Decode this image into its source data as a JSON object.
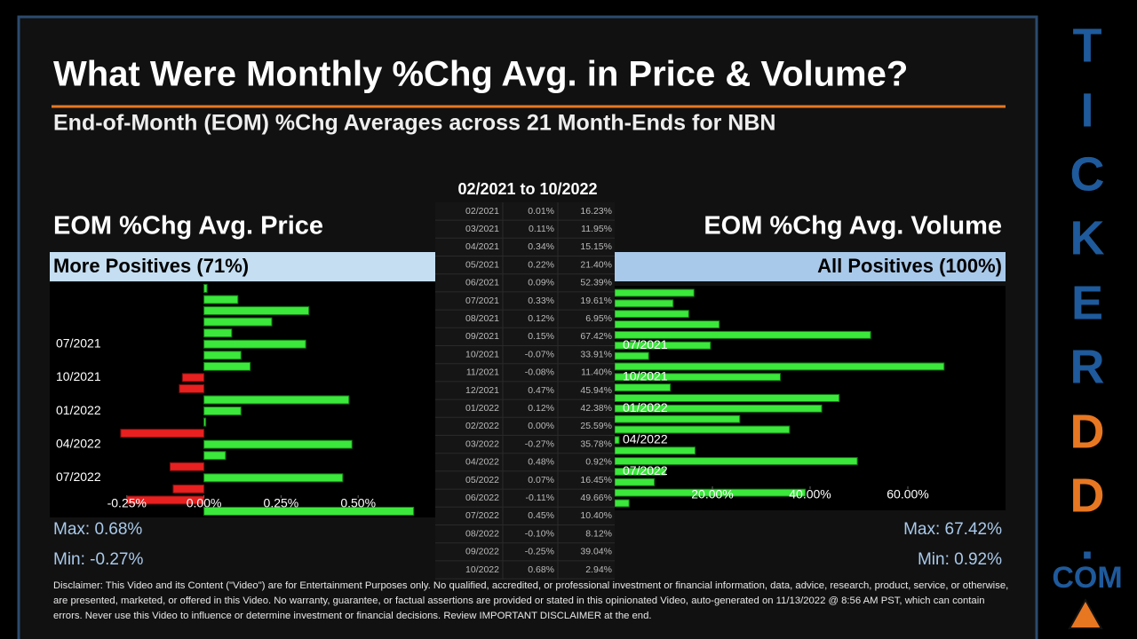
{
  "header": {
    "title": "What Were Monthly %Chg Avg. in Price & Volume?",
    "subtitle": "End-of-Month (EOM) %Chg Averages across 21 Month-Ends for NBN"
  },
  "table": {
    "title": "02/2021 to 10/2022",
    "rows": [
      [
        "02/2021",
        "0.01%",
        "16.23%"
      ],
      [
        "03/2021",
        "0.11%",
        "11.95%"
      ],
      [
        "04/2021",
        "0.34%",
        "15.15%"
      ],
      [
        "05/2021",
        "0.22%",
        "21.40%"
      ],
      [
        "06/2021",
        "0.09%",
        "52.39%"
      ],
      [
        "07/2021",
        "0.33%",
        "19.61%"
      ],
      [
        "08/2021",
        "0.12%",
        "6.95%"
      ],
      [
        "09/2021",
        "0.15%",
        "67.42%"
      ],
      [
        "10/2021",
        "-0.07%",
        "33.91%"
      ],
      [
        "11/2021",
        "-0.08%",
        "11.40%"
      ],
      [
        "12/2021",
        "0.47%",
        "45.94%"
      ],
      [
        "01/2022",
        "0.12%",
        "42.38%"
      ],
      [
        "02/2022",
        "0.00%",
        "25.59%"
      ],
      [
        "03/2022",
        "-0.27%",
        "35.78%"
      ],
      [
        "04/2022",
        "0.48%",
        "0.92%"
      ],
      [
        "05/2022",
        "0.07%",
        "16.45%"
      ],
      [
        "06/2022",
        "-0.11%",
        "49.66%"
      ],
      [
        "07/2022",
        "0.45%",
        "10.40%"
      ],
      [
        "08/2022",
        "-0.10%",
        "8.12%"
      ],
      [
        "09/2022",
        "-0.25%",
        "39.04%"
      ],
      [
        "10/2022",
        "0.68%",
        "2.94%"
      ]
    ]
  },
  "chart_data": [
    {
      "type": "bar",
      "orientation": "horizontal",
      "title": "EOM %Chg Avg. Price",
      "subtitle": "More Positives (71%)",
      "categories": [
        null,
        null,
        null,
        null,
        null,
        "07/2021",
        null,
        null,
        "10/2021",
        null,
        null,
        "01/2022",
        null,
        null,
        "04/2022",
        null,
        null,
        "07/2022",
        null,
        null,
        null
      ],
      "values": [
        0.01,
        0.11,
        0.34,
        0.22,
        0.09,
        0.33,
        0.12,
        0.15,
        -0.07,
        -0.08,
        0.47,
        0.12,
        0.0,
        -0.27,
        0.48,
        0.07,
        -0.11,
        0.45,
        -0.1,
        -0.25,
        0.68
      ],
      "color": "#3be83b",
      "negative_color": "#e82020",
      "xlim": [
        -0.5,
        0.75
      ],
      "xticks": [
        {
          "value": -0.25,
          "label": "-0.25%"
        },
        {
          "value": 0,
          "label": "0.00%"
        },
        {
          "value": 0.25,
          "label": "0.25%"
        },
        {
          "value": 0.5,
          "label": "0.50%"
        }
      ],
      "max_label": "Max: 0.68%",
      "min_label": "Min: -0.27%"
    },
    {
      "type": "bar",
      "orientation": "horizontal",
      "title": "EOM %Chg Avg. Volume",
      "subtitle": "All Positives (100%)",
      "categories": [
        null,
        null,
        null,
        null,
        null,
        "07/2021",
        null,
        null,
        "10/2021",
        null,
        null,
        "01/2022",
        null,
        null,
        "04/2022",
        null,
        null,
        "07/2022",
        null,
        null,
        null
      ],
      "values": [
        16.23,
        11.95,
        15.15,
        21.4,
        52.39,
        19.61,
        6.95,
        67.42,
        33.91,
        11.4,
        45.94,
        42.38,
        25.59,
        35.78,
        0.92,
        16.45,
        49.66,
        10.4,
        8.12,
        39.04,
        2.94
      ],
      "color": "#3be83b",
      "xlim": [
        0,
        80
      ],
      "xticks": [
        {
          "value": 20,
          "label": "20.00%"
        },
        {
          "value": 40,
          "label": "40.00%"
        },
        {
          "value": 60,
          "label": "60.00%"
        }
      ],
      "max_label": "Max: 67.42%",
      "min_label": "Min: 0.92%"
    }
  ],
  "disclaimer": "Disclaimer: This Video and its Content (\"Video\") are for Entertainment Purposes only. No qualified, accredited, or professional investment or financial information, data, advice, research, product, service, or otherwise, are presented, marketed, or offered in this Video. No warranty, guarantee, or factual assertions are provided or stated in this opinionated Video, auto-generated on 11/13/2022 @ 8:56 AM PST, which can contain errors. Never use this Video to influence or determine investment or financial decisions. Review IMPORTANT DISCLAIMER at the end.",
  "brand": {
    "letters": [
      "T",
      "I",
      "C",
      "K",
      "E",
      "R",
      "D",
      "D",
      ".",
      "COM"
    ]
  }
}
